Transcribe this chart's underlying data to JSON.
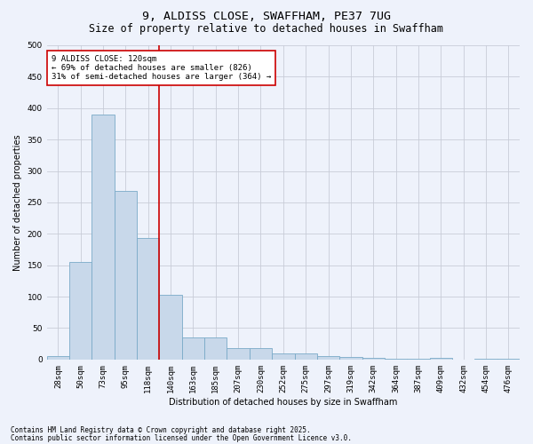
{
  "title": "9, ALDISS CLOSE, SWAFFHAM, PE37 7UG",
  "subtitle": "Size of property relative to detached houses in Swaffham",
  "xlabel": "Distribution of detached houses by size in Swaffham",
  "ylabel": "Number of detached properties",
  "categories": [
    "28sqm",
    "50sqm",
    "73sqm",
    "95sqm",
    "118sqm",
    "140sqm",
    "163sqm",
    "185sqm",
    "207sqm",
    "230sqm",
    "252sqm",
    "275sqm",
    "297sqm",
    "319sqm",
    "342sqm",
    "364sqm",
    "387sqm",
    "409sqm",
    "432sqm",
    "454sqm",
    "476sqm"
  ],
  "values": [
    6,
    155,
    390,
    268,
    193,
    103,
    35,
    35,
    18,
    18,
    9,
    9,
    6,
    4,
    2,
    1,
    1,
    3,
    0,
    1,
    1
  ],
  "bar_color": "#c8d8ea",
  "bar_edge_color": "#7aaac8",
  "background_color": "#eef2fb",
  "grid_color": "#c8ccd8",
  "vline_x_index": 4.5,
  "vline_color": "#cc0000",
  "annotation_text": "9 ALDISS CLOSE: 120sqm\n← 69% of detached houses are smaller (826)\n31% of semi-detached houses are larger (364) →",
  "annotation_box_color": "#ffffff",
  "annotation_box_edge": "#cc0000",
  "footer1": "Contains HM Land Registry data © Crown copyright and database right 2025.",
  "footer2": "Contains public sector information licensed under the Open Government Licence v3.0.",
  "ylim": [
    0,
    500
  ],
  "yticks": [
    0,
    50,
    100,
    150,
    200,
    250,
    300,
    350,
    400,
    450,
    500
  ],
  "title_fontsize": 9.5,
  "subtitle_fontsize": 8.5,
  "label_fontsize": 7,
  "tick_fontsize": 6.5,
  "annotation_fontsize": 6.5,
  "footer_fontsize": 5.5
}
